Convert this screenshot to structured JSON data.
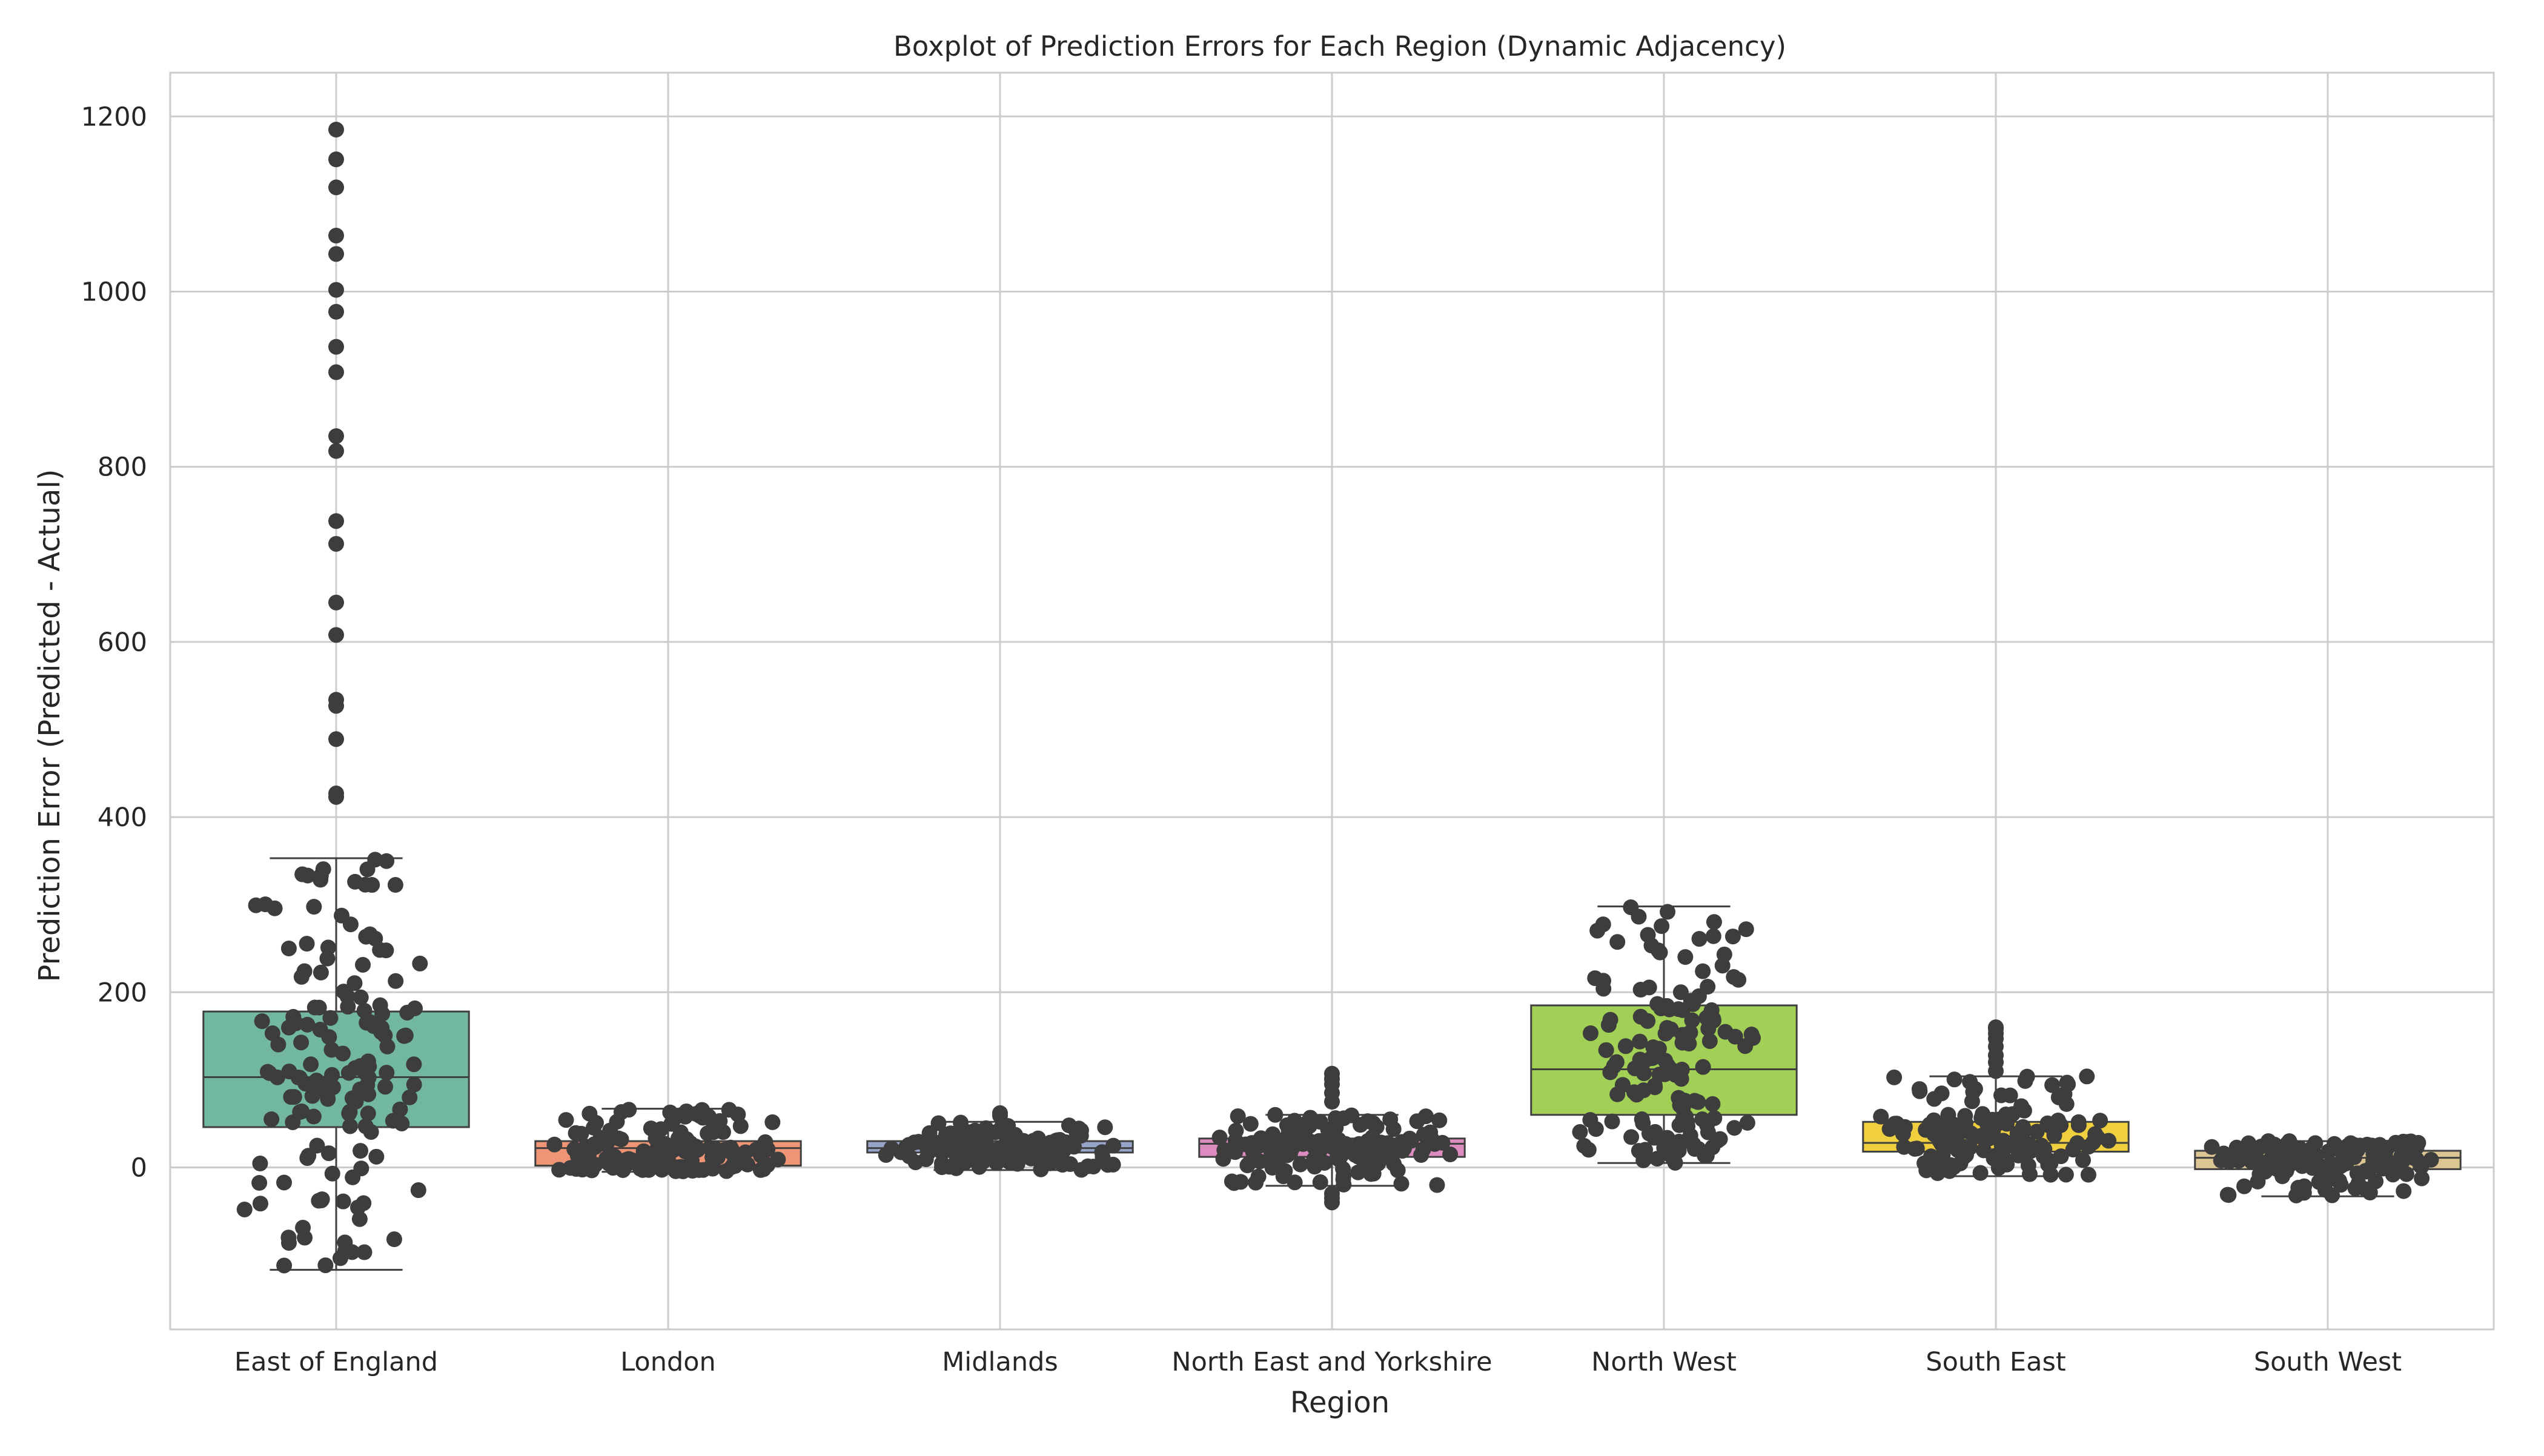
{
  "chart_data": {
    "type": "boxplot",
    "title": "Boxplot of Prediction Errors for Each Region (Dynamic Adjacency)",
    "xlabel": "Region",
    "ylabel": "Prediction Error (Predicted - Actual)",
    "ylim": [
      -185,
      1250
    ],
    "yticks": [
      0,
      200,
      400,
      600,
      800,
      1000,
      1200
    ],
    "grid": true,
    "overlay": "swarm points (dark grey)",
    "categories": [
      "East of England",
      "London",
      "Midlands",
      "North East and Yorkshire",
      "North West",
      "South East",
      "South West"
    ],
    "box_colors": [
      "#72b8a0",
      "#ef9474",
      "#97a3c8",
      "#dd8cc0",
      "#a2cf56",
      "#f0d03e",
      "#dbc592"
    ],
    "point_color": "#3d3d3d",
    "boxes": [
      {
        "category": "East of England",
        "whislo": -117,
        "q1": 46,
        "med": 103,
        "q3": 178,
        "whishi": 353,
        "fliers": [
          423,
          427,
          489,
          527,
          534,
          608,
          645,
          712,
          738,
          818,
          835,
          908,
          937,
          977,
          1002,
          1043,
          1064,
          1119,
          1151,
          1185
        ]
      },
      {
        "category": "London",
        "whislo": -5,
        "q1": 2,
        "med": 22,
        "q3": 30,
        "whishi": 67,
        "fliers": []
      },
      {
        "category": "Midlands",
        "whislo": -3,
        "q1": 17,
        "med": 22,
        "q3": 30,
        "whishi": 52,
        "fliers": [
          59,
          62
        ]
      },
      {
        "category": "North East and Yorkshire",
        "whislo": -21,
        "q1": 12,
        "med": 27,
        "q3": 33,
        "whishi": 60,
        "fliers": [
          -40,
          -35,
          -30,
          75,
          85,
          95,
          101,
          107
        ]
      },
      {
        "category": "North West",
        "whislo": 5,
        "q1": 60,
        "med": 112,
        "q3": 185,
        "whishi": 298,
        "fliers": []
      },
      {
        "category": "South East",
        "whislo": -10,
        "q1": 18,
        "med": 28,
        "q3": 52,
        "whishi": 104,
        "fliers": [
          110,
          120,
          128,
          138,
          147,
          153,
          158,
          160
        ]
      },
      {
        "category": "South West",
        "whislo": -33,
        "q1": -2,
        "med": 11,
        "q3": 19,
        "whishi": 30,
        "fliers": []
      }
    ]
  }
}
